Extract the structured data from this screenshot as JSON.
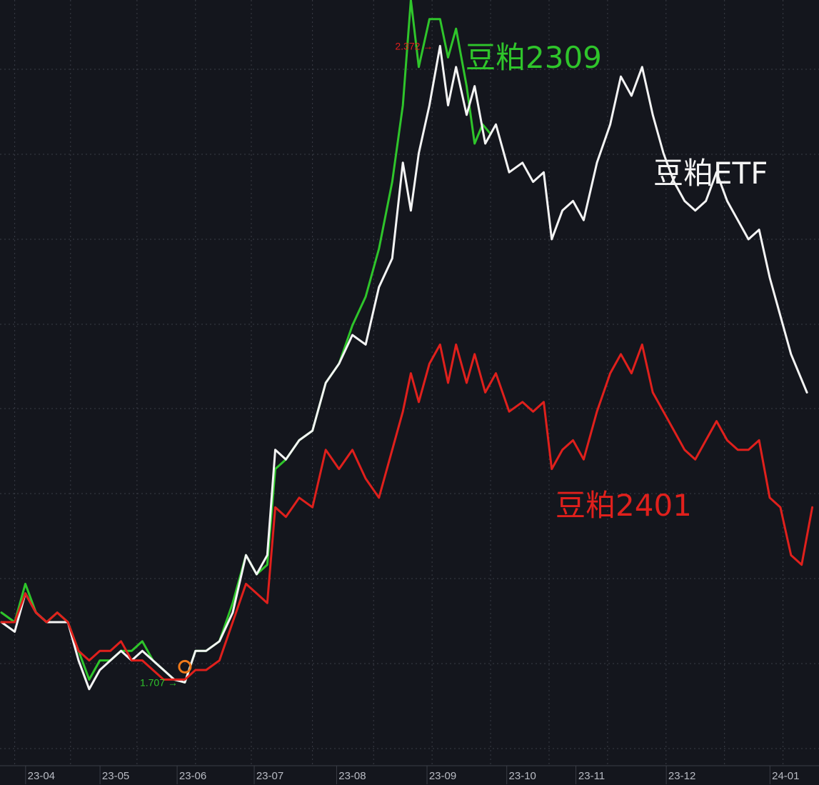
{
  "chart_data": {
    "type": "line",
    "xlabel": "",
    "ylabel": "",
    "grid": true,
    "x_ticks": [
      "23-04",
      "23-05",
      "23-06",
      "23-07",
      "23-08",
      "23-09",
      "23-10",
      "23-11",
      "23-12",
      "24-01"
    ],
    "ylim": [
      1.62,
      2.42
    ],
    "series": [
      {
        "name": "豆粕2309",
        "color": "#2fc52b",
        "points": [
          [
            "2023-03-20",
            1.78
          ],
          [
            "2023-03-25",
            1.77
          ],
          [
            "2023-03-29",
            1.81
          ],
          [
            "2023-04-02",
            1.78
          ],
          [
            "2023-04-06",
            1.77
          ],
          [
            "2023-04-10",
            1.78
          ],
          [
            "2023-04-14",
            1.77
          ],
          [
            "2023-04-18",
            1.74
          ],
          [
            "2023-04-22",
            1.71
          ],
          [
            "2023-04-26",
            1.73
          ],
          [
            "2023-04-30",
            1.73
          ],
          [
            "2023-05-04",
            1.74
          ],
          [
            "2023-05-08",
            1.74
          ],
          [
            "2023-05-12",
            1.75
          ],
          [
            "2023-05-16",
            1.73
          ],
          [
            "2023-05-20",
            1.72
          ],
          [
            "2023-05-24",
            1.71
          ],
          [
            "2023-05-28",
            1.707
          ],
          [
            "2023-06-01",
            1.74
          ],
          [
            "2023-06-05",
            1.74
          ],
          [
            "2023-06-10",
            1.75
          ],
          [
            "2023-06-15",
            1.79
          ],
          [
            "2023-06-20",
            1.84
          ],
          [
            "2023-06-24",
            1.82
          ],
          [
            "2023-06-28",
            1.83
          ],
          [
            "2023-07-01",
            1.93
          ],
          [
            "2023-07-05",
            1.94
          ],
          [
            "2023-07-10",
            1.96
          ],
          [
            "2023-07-15",
            1.97
          ],
          [
            "2023-07-20",
            2.02
          ],
          [
            "2023-07-25",
            2.04
          ],
          [
            "2023-07-30",
            2.08
          ],
          [
            "2023-08-04",
            2.11
          ],
          [
            "2023-08-09",
            2.16
          ],
          [
            "2023-08-14",
            2.23
          ],
          [
            "2023-08-18",
            2.31
          ],
          [
            "2023-08-21",
            2.42
          ],
          [
            "2023-08-24",
            2.35
          ],
          [
            "2023-08-28",
            2.4
          ],
          [
            "2023-09-01",
            2.4
          ],
          [
            "2023-09-04",
            2.36
          ],
          [
            "2023-09-07",
            2.39
          ],
          [
            "2023-09-11",
            2.33
          ],
          [
            "2023-09-14",
            2.27
          ],
          [
            "2023-09-17",
            2.29
          ],
          [
            "2023-09-20",
            2.28
          ]
        ]
      },
      {
        "name": "豆粕ETF",
        "color": "#f4f4f4",
        "points": [
          [
            "2023-03-20",
            1.77
          ],
          [
            "2023-03-25",
            1.76
          ],
          [
            "2023-03-29",
            1.8
          ],
          [
            "2023-04-02",
            1.78
          ],
          [
            "2023-04-06",
            1.77
          ],
          [
            "2023-04-10",
            1.77
          ],
          [
            "2023-04-14",
            1.77
          ],
          [
            "2023-04-18",
            1.73
          ],
          [
            "2023-04-22",
            1.7
          ],
          [
            "2023-04-26",
            1.72
          ],
          [
            "2023-04-30",
            1.73
          ],
          [
            "2023-05-04",
            1.74
          ],
          [
            "2023-05-08",
            1.73
          ],
          [
            "2023-05-12",
            1.74
          ],
          [
            "2023-05-16",
            1.73
          ],
          [
            "2023-05-20",
            1.72
          ],
          [
            "2023-05-24",
            1.71
          ],
          [
            "2023-05-28",
            1.707
          ],
          [
            "2023-06-01",
            1.74
          ],
          [
            "2023-06-05",
            1.74
          ],
          [
            "2023-06-10",
            1.75
          ],
          [
            "2023-06-15",
            1.78
          ],
          [
            "2023-06-20",
            1.84
          ],
          [
            "2023-06-24",
            1.82
          ],
          [
            "2023-06-28",
            1.84
          ],
          [
            "2023-07-01",
            1.95
          ],
          [
            "2023-07-05",
            1.94
          ],
          [
            "2023-07-10",
            1.96
          ],
          [
            "2023-07-15",
            1.97
          ],
          [
            "2023-07-20",
            2.02
          ],
          [
            "2023-07-25",
            2.04
          ],
          [
            "2023-07-30",
            2.07
          ],
          [
            "2023-08-04",
            2.06
          ],
          [
            "2023-08-09",
            2.12
          ],
          [
            "2023-08-14",
            2.15
          ],
          [
            "2023-08-18",
            2.25
          ],
          [
            "2023-08-21",
            2.2
          ],
          [
            "2023-08-24",
            2.26
          ],
          [
            "2023-08-28",
            2.31
          ],
          [
            "2023-09-01",
            2.372
          ],
          [
            "2023-09-04",
            2.31
          ],
          [
            "2023-09-07",
            2.35
          ],
          [
            "2023-09-11",
            2.3
          ],
          [
            "2023-09-14",
            2.33
          ],
          [
            "2023-09-18",
            2.27
          ],
          [
            "2023-09-22",
            2.29
          ],
          [
            "2023-09-27",
            2.24
          ],
          [
            "2023-10-02",
            2.25
          ],
          [
            "2023-10-06",
            2.23
          ],
          [
            "2023-10-10",
            2.24
          ],
          [
            "2023-10-13",
            2.17
          ],
          [
            "2023-10-17",
            2.2
          ],
          [
            "2023-10-21",
            2.21
          ],
          [
            "2023-10-25",
            2.19
          ],
          [
            "2023-10-30",
            2.25
          ],
          [
            "2023-11-04",
            2.29
          ],
          [
            "2023-11-08",
            2.34
          ],
          [
            "2023-11-12",
            2.32
          ],
          [
            "2023-11-16",
            2.35
          ],
          [
            "2023-11-20",
            2.3
          ],
          [
            "2023-11-24",
            2.26
          ],
          [
            "2023-11-28",
            2.23
          ],
          [
            "2023-12-02",
            2.21
          ],
          [
            "2023-12-06",
            2.2
          ],
          [
            "2023-12-10",
            2.21
          ],
          [
            "2023-12-14",
            2.24
          ],
          [
            "2023-12-18",
            2.21
          ],
          [
            "2023-12-22",
            2.19
          ],
          [
            "2023-12-26",
            2.17
          ],
          [
            "2023-12-30",
            2.18
          ],
          [
            "2024-01-03",
            2.13
          ],
          [
            "2024-01-07",
            2.09
          ],
          [
            "2024-01-11",
            2.05
          ],
          [
            "2024-01-17",
            2.01
          ]
        ]
      },
      {
        "name": "豆粕2401",
        "color": "#e0201c",
        "points": [
          [
            "2023-03-20",
            1.77
          ],
          [
            "2023-03-25",
            1.77
          ],
          [
            "2023-03-29",
            1.8
          ],
          [
            "2023-04-02",
            1.78
          ],
          [
            "2023-04-06",
            1.77
          ],
          [
            "2023-04-10",
            1.78
          ],
          [
            "2023-04-14",
            1.77
          ],
          [
            "2023-04-18",
            1.74
          ],
          [
            "2023-04-22",
            1.73
          ],
          [
            "2023-04-26",
            1.74
          ],
          [
            "2023-04-30",
            1.74
          ],
          [
            "2023-05-04",
            1.75
          ],
          [
            "2023-05-08",
            1.73
          ],
          [
            "2023-05-12",
            1.73
          ],
          [
            "2023-05-16",
            1.72
          ],
          [
            "2023-05-20",
            1.71
          ],
          [
            "2023-05-24",
            1.71
          ],
          [
            "2023-05-28",
            1.71
          ],
          [
            "2023-06-01",
            1.72
          ],
          [
            "2023-06-05",
            1.72
          ],
          [
            "2023-06-10",
            1.73
          ],
          [
            "2023-06-15",
            1.77
          ],
          [
            "2023-06-20",
            1.81
          ],
          [
            "2023-06-24",
            1.8
          ],
          [
            "2023-06-28",
            1.79
          ],
          [
            "2023-07-01",
            1.89
          ],
          [
            "2023-07-05",
            1.88
          ],
          [
            "2023-07-10",
            1.9
          ],
          [
            "2023-07-15",
            1.89
          ],
          [
            "2023-07-20",
            1.95
          ],
          [
            "2023-07-25",
            1.93
          ],
          [
            "2023-07-30",
            1.95
          ],
          [
            "2023-08-04",
            1.92
          ],
          [
            "2023-08-09",
            1.9
          ],
          [
            "2023-08-14",
            1.95
          ],
          [
            "2023-08-18",
            1.99
          ],
          [
            "2023-08-21",
            2.03
          ],
          [
            "2023-08-24",
            2.0
          ],
          [
            "2023-08-28",
            2.04
          ],
          [
            "2023-09-01",
            2.06
          ],
          [
            "2023-09-04",
            2.02
          ],
          [
            "2023-09-07",
            2.06
          ],
          [
            "2023-09-11",
            2.02
          ],
          [
            "2023-09-14",
            2.05
          ],
          [
            "2023-09-18",
            2.01
          ],
          [
            "2023-09-22",
            2.03
          ],
          [
            "2023-09-27",
            1.99
          ],
          [
            "2023-10-02",
            2.0
          ],
          [
            "2023-10-06",
            1.99
          ],
          [
            "2023-10-10",
            2.0
          ],
          [
            "2023-10-13",
            1.93
          ],
          [
            "2023-10-17",
            1.95
          ],
          [
            "2023-10-21",
            1.96
          ],
          [
            "2023-10-25",
            1.94
          ],
          [
            "2023-10-30",
            1.99
          ],
          [
            "2023-11-04",
            2.03
          ],
          [
            "2023-11-08",
            2.05
          ],
          [
            "2023-11-12",
            2.03
          ],
          [
            "2023-11-16",
            2.06
          ],
          [
            "2023-11-20",
            2.01
          ],
          [
            "2023-11-24",
            1.99
          ],
          [
            "2023-11-28",
            1.97
          ],
          [
            "2023-12-02",
            1.95
          ],
          [
            "2023-12-06",
            1.94
          ],
          [
            "2023-12-10",
            1.96
          ],
          [
            "2023-12-14",
            1.98
          ],
          [
            "2023-12-18",
            1.96
          ],
          [
            "2023-12-22",
            1.95
          ],
          [
            "2023-12-26",
            1.95
          ],
          [
            "2023-12-30",
            1.96
          ],
          [
            "2024-01-03",
            1.9
          ],
          [
            "2024-01-07",
            1.89
          ],
          [
            "2024-01-11",
            1.84
          ],
          [
            "2024-01-15",
            1.83
          ],
          [
            "2024-01-19",
            1.89
          ]
        ]
      }
    ],
    "annotations": [
      {
        "text": "2.372",
        "x": "2023-09-01",
        "y": 2.372,
        "color": "#e0201c"
      },
      {
        "text": "1.707",
        "x": "2023-05-28",
        "y": 1.707,
        "color": "#2fc52b"
      }
    ],
    "series_labels": [
      "豆粕2309",
      "豆粕ETF",
      "豆粕2401"
    ]
  }
}
